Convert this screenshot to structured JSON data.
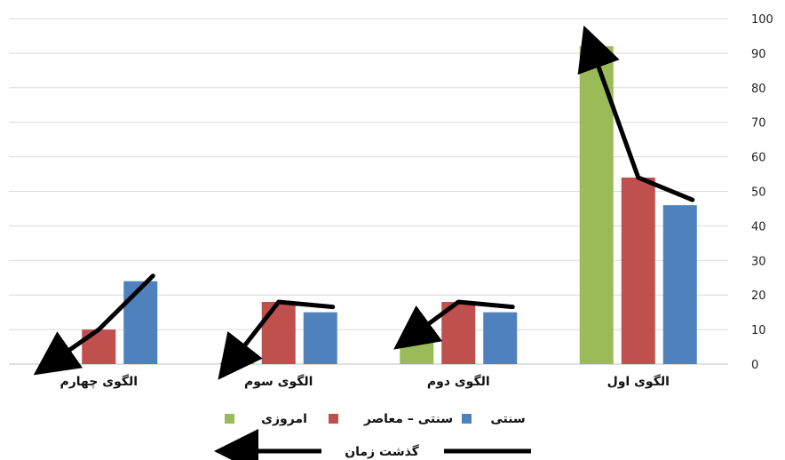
{
  "chart_data": {
    "type": "bar",
    "y_axis_position": "right",
    "category_order": "right-to-left",
    "categories": [
      "الگوی اول",
      "الگوی دوم",
      "الگوی سوم",
      "الگوی چهارم"
    ],
    "series": [
      {
        "name": "امروزی",
        "color": "#9bbb59",
        "values": [
          92,
          8,
          0.5,
          0.5
        ]
      },
      {
        "name": "سنتی – معاصر",
        "color": "#c0504d",
        "values": [
          54,
          18,
          18,
          10
        ]
      },
      {
        "name": "سنتی",
        "color": "#4f81bd",
        "values": [
          46,
          15,
          15,
          24
        ]
      }
    ],
    "ylim": [
      0,
      100
    ],
    "yticks": [
      0,
      10,
      20,
      30,
      40,
      50,
      60,
      70,
      80,
      90,
      100
    ],
    "grid": true,
    "legend_position": "bottom",
    "trend_arrows": true,
    "time_arrow_label": "گذشت زمان"
  }
}
